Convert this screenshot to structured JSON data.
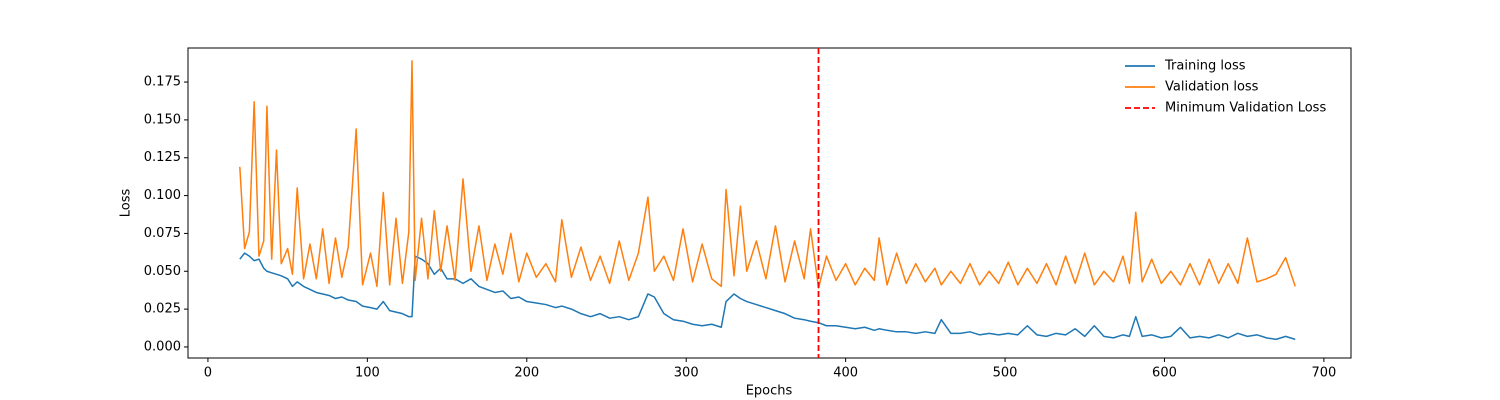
{
  "chart_data": {
    "type": "line",
    "xlabel": "Epochs",
    "ylabel": "Loss",
    "xlim": [
      -12.5,
      717
    ],
    "ylim": [
      -0.0073,
      0.1975
    ],
    "xticks": [
      0,
      100,
      200,
      300,
      400,
      500,
      600,
      700
    ],
    "yticks": [
      {
        "value": 0,
        "label": "0.000"
      },
      {
        "value": 0.025,
        "label": "0.025"
      },
      {
        "value": 0.05,
        "label": "0.050"
      },
      {
        "value": 0.075,
        "label": "0.075"
      },
      {
        "value": 0.1,
        "label": "0.100"
      },
      {
        "value": 0.125,
        "label": "0.125"
      },
      {
        "value": 0.15,
        "label": "0.150"
      },
      {
        "value": 0.175,
        "label": "0.175"
      }
    ],
    "legend": "upper right",
    "x": [
      20,
      23,
      26,
      29,
      32,
      35,
      37,
      40,
      43,
      46,
      50,
      53,
      56,
      60,
      64,
      68,
      72,
      76,
      80,
      84,
      88,
      93,
      97,
      102,
      106,
      110,
      114,
      118,
      122,
      126,
      128,
      130,
      134,
      138,
      142,
      146,
      150,
      155,
      160,
      165,
      170,
      175,
      180,
      185,
      190,
      195,
      200,
      206,
      212,
      218,
      222,
      228,
      234,
      240,
      246,
      252,
      258,
      264,
      270,
      276,
      280,
      286,
      292,
      298,
      304,
      310,
      316,
      322,
      325,
      330,
      334,
      338,
      344,
      350,
      356,
      362,
      368,
      374,
      378,
      383,
      388,
      394,
      400,
      406,
      412,
      418,
      421,
      426,
      432,
      438,
      444,
      450,
      456,
      460,
      466,
      472,
      478,
      484,
      490,
      496,
      502,
      508,
      514,
      520,
      526,
      532,
      538,
      544,
      550,
      556,
      562,
      568,
      574,
      578,
      582,
      586,
      592,
      598,
      604,
      610,
      616,
      622,
      628,
      634,
      640,
      646,
      652,
      658,
      664,
      670,
      676,
      682
    ],
    "series": [
      {
        "name": "Training loss",
        "color": "#1f77b4",
        "values": [
          0.058,
          0.062,
          0.06,
          0.057,
          0.058,
          0.052,
          0.05,
          0.049,
          0.048,
          0.047,
          0.045,
          0.04,
          0.043,
          0.04,
          0.038,
          0.036,
          0.035,
          0.034,
          0.032,
          0.033,
          0.031,
          0.03,
          0.027,
          0.026,
          0.025,
          0.03,
          0.024,
          0.023,
          0.022,
          0.02,
          0.02,
          0.06,
          0.058,
          0.055,
          0.048,
          0.052,
          0.045,
          0.045,
          0.042,
          0.045,
          0.04,
          0.038,
          0.036,
          0.037,
          0.032,
          0.033,
          0.03,
          0.029,
          0.028,
          0.026,
          0.027,
          0.025,
          0.022,
          0.02,
          0.022,
          0.019,
          0.02,
          0.018,
          0.02,
          0.035,
          0.033,
          0.022,
          0.018,
          0.017,
          0.015,
          0.014,
          0.015,
          0.013,
          0.03,
          0.035,
          0.032,
          0.03,
          0.028,
          0.026,
          0.024,
          0.022,
          0.019,
          0.018,
          0.017,
          0.016,
          0.014,
          0.014,
          0.013,
          0.012,
          0.013,
          0.011,
          0.012,
          0.011,
          0.01,
          0.01,
          0.009,
          0.01,
          0.009,
          0.018,
          0.009,
          0.009,
          0.01,
          0.008,
          0.009,
          0.008,
          0.009,
          0.008,
          0.014,
          0.008,
          0.007,
          0.009,
          0.008,
          0.012,
          0.007,
          0.014,
          0.007,
          0.006,
          0.008,
          0.007,
          0.02,
          0.007,
          0.008,
          0.006,
          0.007,
          0.013,
          0.006,
          0.007,
          0.006,
          0.008,
          0.006,
          0.009,
          0.007,
          0.008,
          0.006,
          0.005,
          0.007,
          0.005
        ]
      },
      {
        "name": "Validation loss",
        "color": "#ff7f0e",
        "values": [
          0.119,
          0.065,
          0.076,
          0.162,
          0.06,
          0.07,
          0.159,
          0.058,
          0.13,
          0.055,
          0.065,
          0.048,
          0.105,
          0.045,
          0.068,
          0.045,
          0.078,
          0.042,
          0.072,
          0.046,
          0.066,
          0.144,
          0.041,
          0.062,
          0.04,
          0.102,
          0.041,
          0.085,
          0.042,
          0.076,
          0.189,
          0.044,
          0.085,
          0.045,
          0.09,
          0.05,
          0.08,
          0.044,
          0.111,
          0.05,
          0.08,
          0.044,
          0.068,
          0.048,
          0.075,
          0.043,
          0.062,
          0.046,
          0.055,
          0.043,
          0.084,
          0.046,
          0.066,
          0.044,
          0.06,
          0.042,
          0.07,
          0.044,
          0.062,
          0.099,
          0.05,
          0.06,
          0.044,
          0.078,
          0.043,
          0.068,
          0.045,
          0.04,
          0.104,
          0.047,
          0.093,
          0.05,
          0.07,
          0.045,
          0.08,
          0.043,
          0.07,
          0.045,
          0.078,
          0.039,
          0.06,
          0.044,
          0.055,
          0.041,
          0.052,
          0.044,
          0.072,
          0.041,
          0.062,
          0.042,
          0.055,
          0.043,
          0.052,
          0.041,
          0.05,
          0.042,
          0.055,
          0.041,
          0.05,
          0.042,
          0.056,
          0.041,
          0.052,
          0.042,
          0.055,
          0.041,
          0.06,
          0.042,
          0.062,
          0.041,
          0.05,
          0.043,
          0.06,
          0.042,
          0.089,
          0.043,
          0.058,
          0.042,
          0.05,
          0.041,
          0.055,
          0.041,
          0.058,
          0.042,
          0.055,
          0.042,
          0.072,
          0.043,
          0.045,
          0.048,
          0.059,
          0.04
        ]
      }
    ],
    "vline": {
      "name": "Minimum Validation Loss",
      "x": 383,
      "color": "#ff0000"
    }
  }
}
